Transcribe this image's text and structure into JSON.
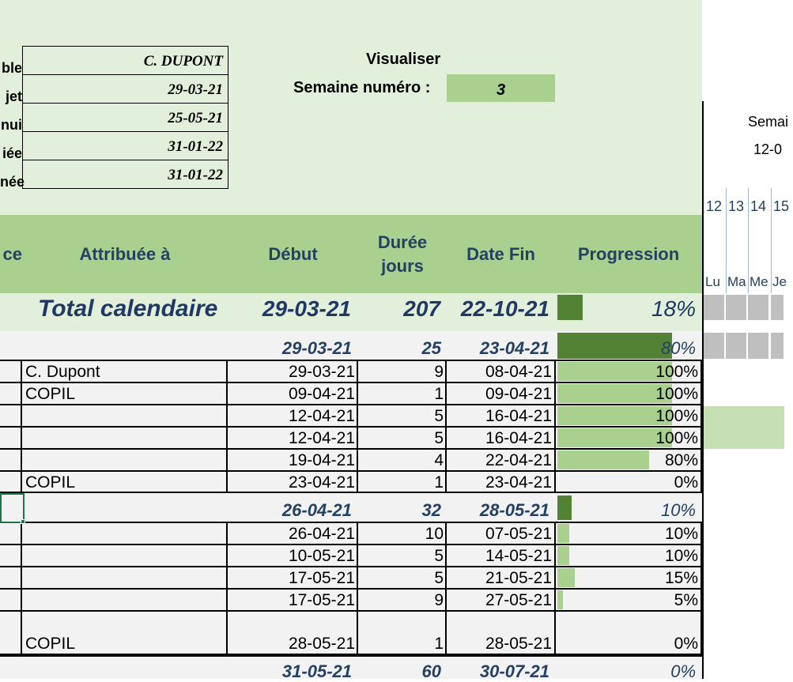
{
  "info": [
    {
      "label": "ble",
      "value": "C. DUPONT"
    },
    {
      "label": "jet",
      "value": "29-03-21"
    },
    {
      "label": "nui",
      "value": "25-05-21"
    },
    {
      "label": "iée",
      "value": "31-01-22"
    },
    {
      "label": "née",
      "value": "31-01-22"
    }
  ],
  "visualiser": {
    "title": "Visualiser",
    "semaine_label": "Semaine numéro :",
    "semaine_value": "3"
  },
  "headers": {
    "ce": "ce",
    "attribuee": "Attribuée à",
    "debut": "Début",
    "duree": "Durée jours",
    "date_fin": "Date Fin",
    "progression": "Progression"
  },
  "calendar": {
    "semaine": "Semai",
    "date": "12-0",
    "day_numbers": [
      "12",
      "13",
      "14",
      "15"
    ],
    "day_names": [
      "Lu",
      "Ma",
      "Me",
      "Je"
    ]
  },
  "total": {
    "label": "Total calendaire",
    "debut": "29-03-21",
    "duree": "207",
    "fin": "22-10-21",
    "progression": 0.18,
    "pct": "18%"
  },
  "phases": [
    {
      "debut": "29-03-21",
      "duree": "25",
      "fin": "23-04-21",
      "progression": 0.8,
      "pct": "80%"
    },
    {
      "debut": "26-04-21",
      "duree": "32",
      "fin": "28-05-21",
      "progression": 0.1,
      "pct": "10%"
    },
    {
      "debut": "31-05-21",
      "duree": "60",
      "fin": "30-07-21",
      "progression": 0.0,
      "pct": "0%"
    }
  ],
  "tasks": [
    {
      "attribuee": "C. Dupont",
      "debut": "29-03-21",
      "duree": "9",
      "fin": "08-04-21",
      "progression": 1.0,
      "pct": "100%"
    },
    {
      "attribuee": "COPIL",
      "debut": "09-04-21",
      "duree": "1",
      "fin": "09-04-21",
      "progression": 1.0,
      "pct": "100%"
    },
    {
      "attribuee": "",
      "debut": "12-04-21",
      "duree": "5",
      "fin": "16-04-21",
      "progression": 1.0,
      "pct": "100%"
    },
    {
      "attribuee": "",
      "debut": "12-04-21",
      "duree": "5",
      "fin": "16-04-21",
      "progression": 1.0,
      "pct": "100%"
    },
    {
      "attribuee": "",
      "debut": "19-04-21",
      "duree": "4",
      "fin": "22-04-21",
      "progression": 0.8,
      "pct": "80%"
    },
    {
      "attribuee": "COPIL",
      "debut": "23-04-21",
      "duree": "1",
      "fin": "23-04-21",
      "progression": 0.0,
      "pct": "0%"
    },
    {
      "attribuee": "",
      "debut": "26-04-21",
      "duree": "10",
      "fin": "07-05-21",
      "progression": 0.1,
      "pct": "10%"
    },
    {
      "attribuee": "",
      "debut": "10-05-21",
      "duree": "5",
      "fin": "14-05-21",
      "progression": 0.1,
      "pct": "10%"
    },
    {
      "attribuee": "",
      "debut": "17-05-21",
      "duree": "5",
      "fin": "21-05-21",
      "progression": 0.15,
      "pct": "15%"
    },
    {
      "attribuee": "",
      "debut": "17-05-21",
      "duree": "9",
      "fin": "27-05-21",
      "progression": 0.05,
      "pct": "5%"
    },
    {
      "attribuee": "COPIL",
      "debut": "28-05-21",
      "duree": "1",
      "fin": "28-05-21",
      "progression": 0.0,
      "pct": "0%"
    }
  ],
  "colors": {
    "header_green": "#a9d08e",
    "light_green": "#e2efda",
    "bar_dark": "#548235",
    "bar_light": "#a9d08e",
    "title_blue": "#244062"
  }
}
